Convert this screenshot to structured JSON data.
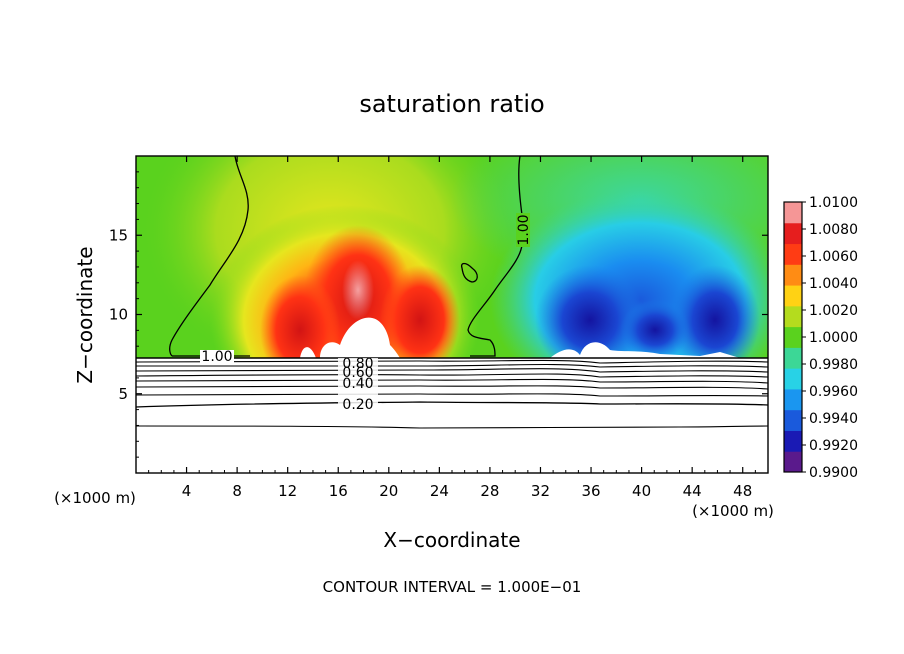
{
  "chart_data": {
    "type": "heatmap",
    "title": "saturation ratio",
    "xlabel": "X−coordinate",
    "ylabel": "Z−coordinate",
    "x_unit_label": "(×1000 m)",
    "y_unit_label": "(×1000 m)",
    "footer": "CONTOUR INTERVAL = 1.000E−01",
    "xlim": [
      0,
      50
    ],
    "ylim": [
      0,
      20
    ],
    "x_ticks": [
      4,
      8,
      12,
      16,
      20,
      24,
      28,
      32,
      36,
      40,
      44,
      48
    ],
    "x_tick_labels": [
      "4",
      "8",
      "12",
      "16",
      "20",
      "24",
      "28",
      "32",
      "36",
      "40",
      "44",
      "48"
    ],
    "y_ticks": [
      5,
      10,
      15
    ],
    "y_tick_labels": [
      "5",
      "10",
      "15"
    ],
    "colorbar": {
      "min": 0.99,
      "max": 1.01,
      "tick_values": [
        0.99,
        0.992,
        0.994,
        0.996,
        0.998,
        1.0,
        1.002,
        1.004,
        1.006,
        1.008,
        1.01
      ],
      "tick_labels": [
        "0.9900",
        "0.9920",
        "0.9940",
        "0.9960",
        "0.9980",
        "1.0000",
        "1.0020",
        "1.0040",
        "1.0060",
        "1.0080",
        "1.0100"
      ],
      "colors": [
        "#5a1a8c",
        "#1a1ab4",
        "#1a5adc",
        "#1a96f0",
        "#28d2e6",
        "#3cd796",
        "#5ad21e",
        "#b4dc1e",
        "#ffd214",
        "#ff8c14",
        "#ff3c14",
        "#e61e1e",
        "#f59696"
      ]
    },
    "contour_labels": [
      {
        "text": "1.00",
        "x": 5.5,
        "z": 7.3
      },
      {
        "text": "1.00",
        "x": 30.5,
        "z": 15.5
      },
      {
        "text": "0.80",
        "x": 17.7,
        "z": 6.8
      },
      {
        "text": "0.60",
        "x": 17.7,
        "z": 6.3
      },
      {
        "text": "0.40",
        "x": 17.7,
        "z": 5.8
      },
      {
        "text": "0.20",
        "x": 17.7,
        "z": 4.3
      }
    ],
    "contour_levels": [
      0.2,
      0.4,
      0.6,
      0.8,
      1.0
    ]
  }
}
